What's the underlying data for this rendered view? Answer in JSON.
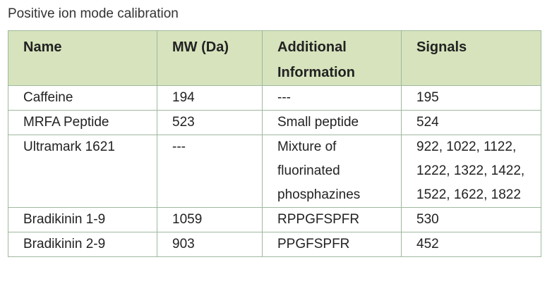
{
  "caption": "Positive ion mode calibration",
  "table": {
    "headers": [
      "Name",
      "MW (Da)",
      "Additional Information",
      "Signals"
    ],
    "rows": [
      [
        "Caffeine",
        "194",
        "---",
        "195"
      ],
      [
        "MRFA Peptide",
        "523",
        "Small peptide",
        "524"
      ],
      [
        "Ultramark 1621",
        "---",
        "Mixture of fluorinated phosphazines",
        "922, 1022, 1122, 1222, 1322, 1422, 1522, 1622, 1822"
      ],
      [
        "Bradikinin 1-9",
        "1059",
        "RPPGFSPFR",
        "530"
      ],
      [
        "Bradikinin 2-9",
        "903",
        "PPGFSPFR",
        "452"
      ]
    ]
  },
  "colors": {
    "header_background": "#d6e3bc",
    "border": "#9fb89f"
  }
}
